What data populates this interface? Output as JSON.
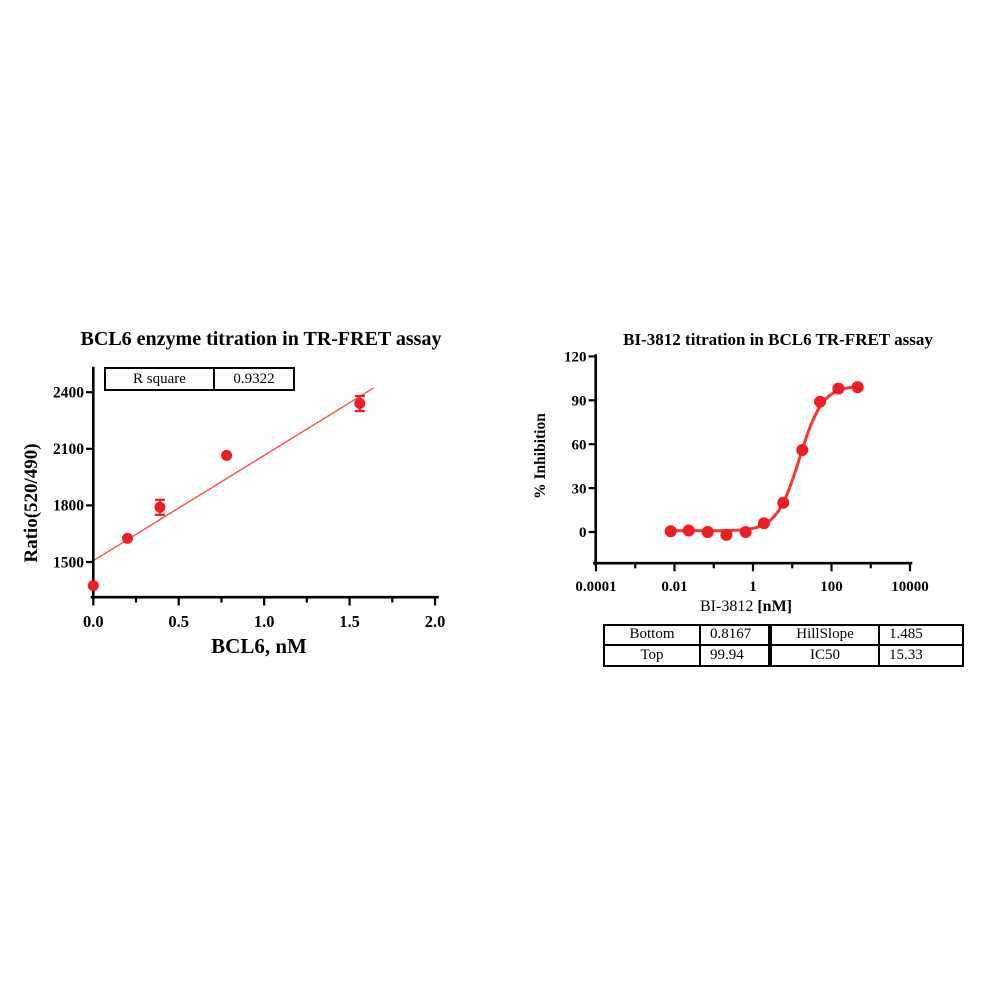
{
  "figure": {
    "background": "#ffffff",
    "text_color": "#000000",
    "axis_color": "#000000"
  },
  "chart_data": [
    {
      "type": "scatter",
      "title": "BCL6 enzyme titration in TR-FRET assay",
      "xlabel": "BCL6, nM",
      "ylabel": "Ratio(520/490)",
      "xlim": [
        0,
        2.05
      ],
      "ylim": [
        1315,
        2527
      ],
      "grid": false,
      "x_ticks": {
        "major": [
          0,
          0.5,
          1.0,
          1.5,
          2.0
        ],
        "labels": [
          "0.0",
          "0.5",
          "1.0",
          "1.5",
          "2.0"
        ],
        "minor": [
          0.25,
          0.75,
          1.25,
          1.75
        ]
      },
      "y_ticks": {
        "major": [
          1500,
          1800,
          2100,
          2400
        ],
        "labels": [
          "1500",
          "1800",
          "2100",
          "2400"
        ]
      },
      "points": [
        {
          "x": 0.0,
          "y": 1375
        },
        {
          "x": 0.2,
          "y": 1625
        },
        {
          "x": 0.39,
          "y": 1790,
          "err": 40
        },
        {
          "x": 0.78,
          "y": 2065
        },
        {
          "x": 1.56,
          "y": 2340,
          "err": 40
        }
      ],
      "fit_line": {
        "x1": 0,
        "y1": 1507,
        "x2": 1.64,
        "y2": 2422
      },
      "stats": {
        "label": "R square",
        "value": "0.9322"
      },
      "marker_color": "#ee1c23",
      "line_color": "#f4504f"
    },
    {
      "type": "line",
      "subtype": "dose-response",
      "title": "BI-3812 titration in BCL6 TR-FRET assay",
      "xlabel": "BI-3812 [nM]",
      "xlabel_parts": {
        "compound": "BI-3812",
        "unit": "[nM]"
      },
      "ylabel": "% Inhibition",
      "x_scale": "log10",
      "xlim": [
        0.0001,
        10000
      ],
      "ylim": [
        -20,
        120
      ],
      "grid": false,
      "x_ticks": {
        "major": [
          0.0001,
          0.01,
          1,
          100,
          10000
        ],
        "labels": [
          "0.0001",
          "0.01",
          "1",
          "100",
          "10000"
        ],
        "minor": [
          0.001,
          0.1,
          10,
          1000
        ]
      },
      "y_ticks": {
        "major": [
          0,
          30,
          60,
          90,
          120
        ],
        "labels": [
          "0",
          "30",
          "60",
          "90",
          "120"
        ]
      },
      "points": [
        {
          "x": 0.008,
          "y": 0.5
        },
        {
          "x": 0.023,
          "y": 1
        },
        {
          "x": 0.07,
          "y": 0
        },
        {
          "x": 0.21,
          "y": -2
        },
        {
          "x": 0.65,
          "y": 0
        },
        {
          "x": 1.9,
          "y": 6
        },
        {
          "x": 5.9,
          "y": 20
        },
        {
          "x": 18,
          "y": 56
        },
        {
          "x": 51,
          "y": 89
        },
        {
          "x": 150,
          "y": 98
        },
        {
          "x": 465,
          "y": 99
        }
      ],
      "fit": {
        "bottom": 0.8167,
        "top": 99.94,
        "hillslope": 1.485,
        "ic50": 15.33
      },
      "curve_x_range": [
        0.008,
        465
      ],
      "fit_table": {
        "cells": [
          [
            "Bottom",
            "0.8167",
            "HillSlope",
            "1.485"
          ],
          [
            "Top",
            "99.94",
            "IC50",
            "15.33"
          ]
        ]
      },
      "marker_color": "#ee1c23",
      "curve_color": "#ef3838"
    }
  ]
}
